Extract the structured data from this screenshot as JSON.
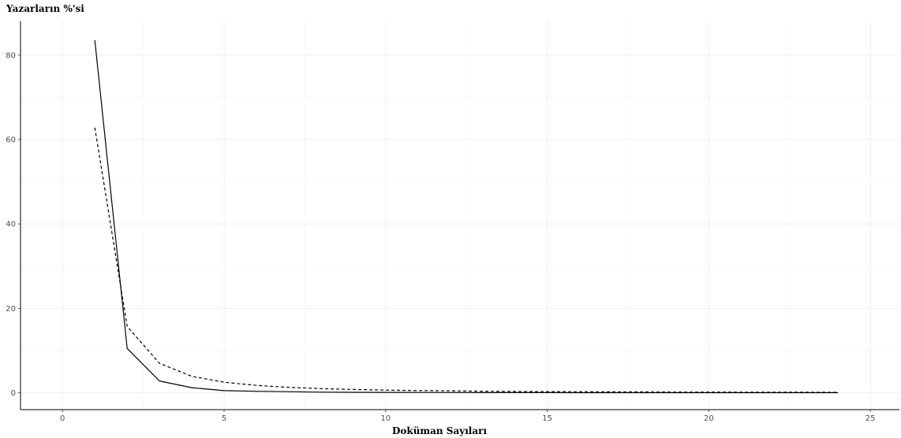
{
  "chart_data": {
    "type": "line",
    "title": "",
    "xlabel": "Doküman Sayıları",
    "ylabel": "Yazarların %'si",
    "xlim": [
      -1.3,
      25.9
    ],
    "ylim": [
      -4,
      88
    ],
    "xticks": [
      0,
      5,
      10,
      15,
      20,
      25
    ],
    "yticks": [
      0,
      20,
      40,
      60,
      80
    ],
    "grid": true,
    "legend": "none",
    "series": [
      {
        "style": "solid",
        "color": "#000000",
        "x": [
          1,
          2,
          3,
          4,
          5,
          6,
          7,
          8,
          9,
          10,
          11,
          12,
          13,
          14,
          15,
          16,
          17,
          18,
          19,
          20,
          21,
          22,
          23,
          24
        ],
        "y": [
          83.5,
          10.5,
          2.8,
          1.2,
          0.5,
          0.35,
          0.25,
          0.15,
          0.1,
          0.08,
          0.06,
          0.05,
          0.04,
          0.03,
          0.03,
          0.02,
          0.02,
          0.02,
          0.01,
          0.01,
          0.01,
          0.01,
          0.01,
          0.01
        ]
      },
      {
        "style": "dashed",
        "color": "#000000",
        "x": [
          1,
          2,
          3,
          4,
          5,
          6,
          7,
          8,
          9,
          10,
          11,
          12,
          13,
          14,
          15,
          16,
          17,
          18,
          19,
          20,
          21,
          22,
          23,
          24
        ],
        "y": [
          62.8,
          15.7,
          7.0,
          3.9,
          2.5,
          1.75,
          1.28,
          0.98,
          0.78,
          0.63,
          0.52,
          0.44,
          0.37,
          0.32,
          0.28,
          0.25,
          0.22,
          0.19,
          0.17,
          0.16,
          0.14,
          0.13,
          0.12,
          0.11
        ]
      }
    ]
  }
}
